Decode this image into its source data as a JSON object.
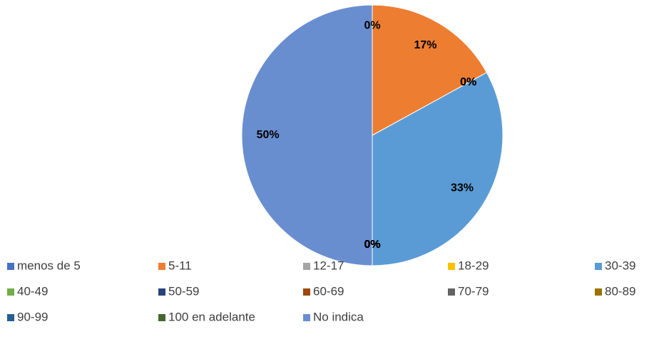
{
  "chart_data": {
    "type": "pie",
    "categories": [
      "menos de 5",
      "5-11",
      "12-17",
      "18-29",
      "30-39",
      "40-49",
      "50-59",
      "60-69",
      "70-79",
      "80-89",
      "90-99",
      "100 en adelante",
      "No indica"
    ],
    "values": [
      0,
      17,
      0,
      0,
      33,
      0,
      0,
      0,
      0,
      0,
      0,
      0,
      50
    ],
    "value_labels": [
      "0%",
      "17%",
      "0%",
      "0%",
      "33%",
      "0%",
      "0%",
      "0%",
      "0%",
      "0%",
      "0%",
      "0%",
      "50%"
    ],
    "colors": [
      "#4472c4",
      "#ed7d31",
      "#a5a5a5",
      "#ffc000",
      "#5b9bd5",
      "#70ad47",
      "#264478",
      "#9e480e",
      "#636363",
      "#997300",
      "#255e91",
      "#43682b",
      "#698ed0"
    ],
    "legend": "bottom"
  }
}
